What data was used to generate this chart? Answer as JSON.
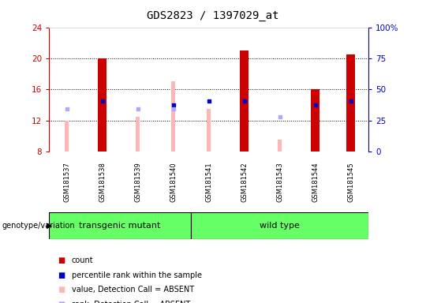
{
  "title": "GDS2823 / 1397029_at",
  "samples": [
    "GSM181537",
    "GSM181538",
    "GSM181539",
    "GSM181540",
    "GSM181541",
    "GSM181542",
    "GSM181543",
    "GSM181544",
    "GSM181545"
  ],
  "groups": [
    "transgenic mutant",
    "transgenic mutant",
    "transgenic mutant",
    "transgenic mutant",
    "wild type",
    "wild type",
    "wild type",
    "wild type",
    "wild type"
  ],
  "ylim_left": [
    8,
    24
  ],
  "ylim_right": [
    0,
    100
  ],
  "yticks_left": [
    8,
    12,
    16,
    20,
    24
  ],
  "yticks_right": [
    0,
    25,
    50,
    75,
    100
  ],
  "right_tick_labels": [
    "0",
    "25",
    "50",
    "75",
    "100%"
  ],
  "red_bars": [
    null,
    20.0,
    null,
    null,
    null,
    21.0,
    null,
    16.0,
    20.5
  ],
  "pink_bars_bottom": [
    8,
    null,
    8,
    8,
    8,
    null,
    8,
    null,
    null
  ],
  "pink_bars_top": [
    12.0,
    null,
    12.5,
    17.0,
    13.5,
    null,
    9.5,
    null,
    null
  ],
  "blue_squares": [
    null,
    14.5,
    null,
    14.0,
    14.5,
    14.5,
    null,
    14.0,
    14.5
  ],
  "lavender_squares": [
    13.5,
    null,
    13.5,
    13.5,
    null,
    null,
    12.5,
    null,
    null
  ],
  "red_bar_width": 0.25,
  "pink_bar_width": 0.12,
  "left_axis_color": "#cc0000",
  "right_axis_color": "#0000cc",
  "background_group_color": "#66ff66",
  "background_label_color": "#d3d3d3",
  "legend_items": [
    {
      "color": "#cc0000",
      "label": "count"
    },
    {
      "color": "#0000cc",
      "label": "percentile rank within the sample"
    },
    {
      "color": "#ffb6b6",
      "label": "value, Detection Call = ABSENT"
    },
    {
      "color": "#aaaaff",
      "label": "rank, Detection Call = ABSENT"
    }
  ]
}
